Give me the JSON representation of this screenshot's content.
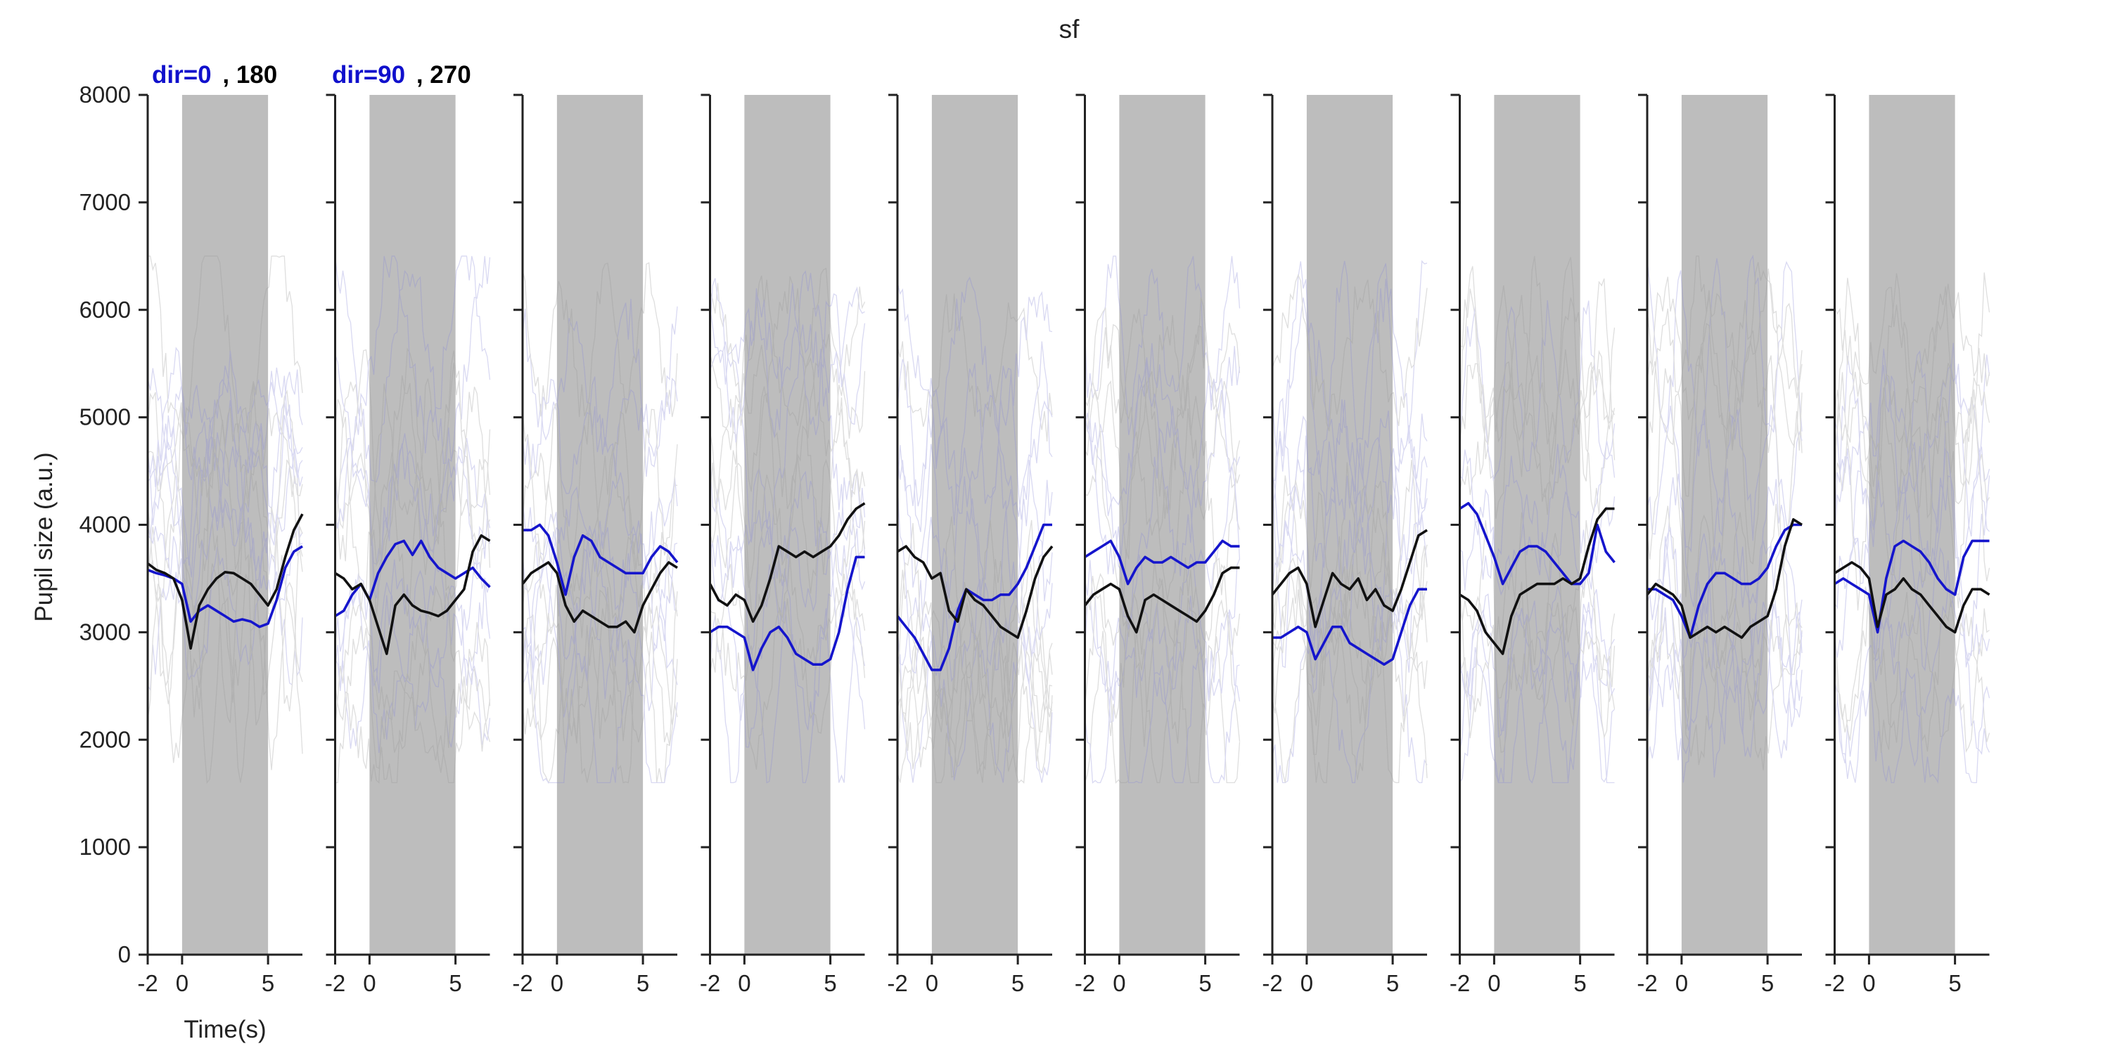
{
  "chart_data": {
    "type": "line",
    "title": "sf",
    "ylabel": "Pupil size (a.u.)",
    "xlabel": "Time(s)",
    "xlim": [
      -2,
      7
    ],
    "ylim": [
      0,
      8000
    ],
    "x_ticks": [
      -2,
      0,
      5
    ],
    "y_ticks": [
      0,
      1000,
      2000,
      3000,
      4000,
      5000,
      6000,
      7000,
      8000
    ],
    "stimulus_window": [
      0,
      5
    ],
    "stimulus_color": "#bdbdbd",
    "grid": false,
    "legend_placement": "top-left, above first two panels",
    "legend": [
      {
        "label": "dir=0",
        "color": "#1010cc"
      },
      {
        "label": ", 180",
        "color": "#000000"
      },
      {
        "label": "dir=90",
        "color": "#1010cc"
      },
      {
        "label": ", 270",
        "color": "#000000"
      }
    ],
    "n_panels": 10,
    "x": [
      -2.0,
      -1.5,
      -1.0,
      -0.5,
      0.0,
      0.5,
      1.0,
      1.5,
      2.0,
      2.5,
      3.0,
      3.5,
      4.0,
      4.5,
      5.0,
      5.5,
      6.0,
      6.5,
      7.0
    ],
    "series_colors": {
      "blue": "#1515cc",
      "black": "#111111"
    },
    "panels": [
      {
        "blue": [
          3580,
          3550,
          3530,
          3500,
          3450,
          3100,
          3200,
          3250,
          3200,
          3150,
          3100,
          3120,
          3100,
          3050,
          3080,
          3300,
          3600,
          3750,
          3800
        ],
        "black": [
          3640,
          3580,
          3550,
          3500,
          3300,
          2850,
          3250,
          3400,
          3500,
          3560,
          3550,
          3500,
          3450,
          3350,
          3250,
          3400,
          3700,
          3950,
          4100
        ]
      },
      {
        "blue": [
          3150,
          3200,
          3350,
          3450,
          3300,
          3550,
          3700,
          3820,
          3850,
          3720,
          3850,
          3700,
          3600,
          3550,
          3500,
          3550,
          3600,
          3500,
          3420
        ],
        "black": [
          3550,
          3500,
          3400,
          3450,
          3300,
          3050,
          2800,
          3250,
          3350,
          3250,
          3200,
          3180,
          3150,
          3200,
          3300,
          3400,
          3750,
          3900,
          3850
        ]
      },
      {
        "blue": [
          3950,
          3950,
          4000,
          3900,
          3650,
          3350,
          3700,
          3900,
          3850,
          3700,
          3650,
          3600,
          3550,
          3550,
          3550,
          3700,
          3800,
          3750,
          3650
        ],
        "black": [
          3450,
          3550,
          3600,
          3650,
          3550,
          3250,
          3100,
          3200,
          3150,
          3100,
          3050,
          3050,
          3100,
          3000,
          3250,
          3400,
          3550,
          3650,
          3600
        ]
      },
      {
        "blue": [
          3000,
          3050,
          3050,
          3000,
          2950,
          2650,
          2850,
          3000,
          3050,
          2950,
          2800,
          2750,
          2700,
          2700,
          2750,
          3000,
          3400,
          3700,
          3700
        ],
        "black": [
          3450,
          3300,
          3250,
          3350,
          3300,
          3100,
          3250,
          3500,
          3800,
          3750,
          3700,
          3750,
          3700,
          3750,
          3800,
          3900,
          4050,
          4150,
          4200
        ]
      },
      {
        "blue": [
          3150,
          3050,
          2950,
          2800,
          2650,
          2650,
          2850,
          3200,
          3400,
          3350,
          3300,
          3300,
          3350,
          3350,
          3450,
          3600,
          3800,
          4000,
          4000
        ],
        "black": [
          3750,
          3800,
          3700,
          3650,
          3500,
          3550,
          3200,
          3100,
          3400,
          3300,
          3250,
          3150,
          3050,
          3000,
          2950,
          3200,
          3500,
          3700,
          3800
        ]
      },
      {
        "blue": [
          3700,
          3750,
          3800,
          3850,
          3700,
          3450,
          3600,
          3700,
          3650,
          3650,
          3700,
          3650,
          3600,
          3650,
          3650,
          3750,
          3850,
          3800,
          3800
        ],
        "black": [
          3250,
          3350,
          3400,
          3450,
          3400,
          3150,
          3000,
          3300,
          3350,
          3300,
          3250,
          3200,
          3150,
          3100,
          3200,
          3350,
          3550,
          3600,
          3600
        ]
      },
      {
        "blue": [
          2950,
          2950,
          3000,
          3050,
          3000,
          2750,
          2900,
          3050,
          3050,
          2900,
          2850,
          2800,
          2750,
          2700,
          2750,
          3000,
          3250,
          3400,
          3400
        ],
        "black": [
          3350,
          3450,
          3550,
          3600,
          3450,
          3050,
          3300,
          3550,
          3450,
          3400,
          3500,
          3300,
          3400,
          3250,
          3200,
          3400,
          3650,
          3900,
          3950
        ]
      },
      {
        "blue": [
          4150,
          4200,
          4100,
          3900,
          3700,
          3450,
          3600,
          3750,
          3800,
          3800,
          3750,
          3650,
          3550,
          3450,
          3450,
          3550,
          4000,
          3750,
          3650
        ],
        "black": [
          3350,
          3300,
          3200,
          3000,
          2900,
          2800,
          3150,
          3350,
          3400,
          3450,
          3450,
          3450,
          3500,
          3450,
          3500,
          3800,
          4050,
          4150,
          4150
        ]
      },
      {
        "blue": [
          3400,
          3400,
          3350,
          3300,
          3150,
          2950,
          3250,
          3450,
          3550,
          3550,
          3500,
          3450,
          3450,
          3500,
          3600,
          3800,
          3950,
          4000,
          4000
        ],
        "black": [
          3350,
          3450,
          3400,
          3350,
          3250,
          2950,
          3000,
          3050,
          3000,
          3050,
          3000,
          2950,
          3050,
          3100,
          3150,
          3400,
          3800,
          4050,
          4000
        ]
      },
      {
        "blue": [
          3450,
          3500,
          3450,
          3400,
          3350,
          3000,
          3500,
          3800,
          3850,
          3800,
          3750,
          3650,
          3500,
          3400,
          3350,
          3700,
          3850,
          3850,
          3850
        ],
        "black": [
          3550,
          3600,
          3650,
          3600,
          3500,
          3050,
          3350,
          3400,
          3500,
          3400,
          3350,
          3250,
          3150,
          3050,
          3000,
          3250,
          3400,
          3400,
          3350
        ]
      }
    ]
  }
}
